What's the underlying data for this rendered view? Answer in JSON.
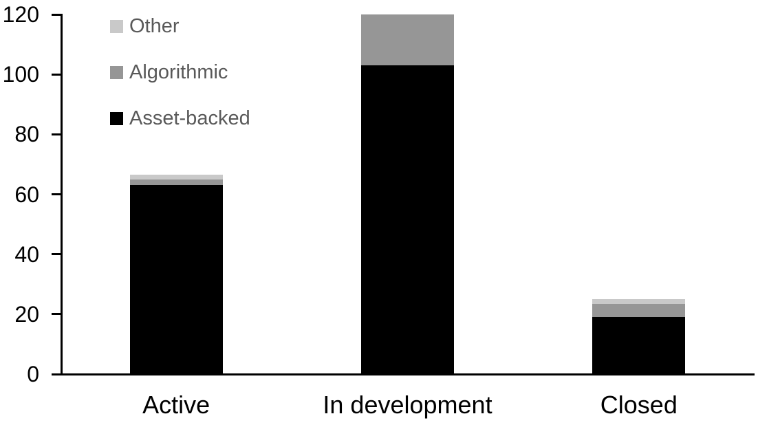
{
  "chart_data": {
    "type": "bar",
    "stacked": true,
    "title": "",
    "xlabel": "",
    "ylabel": "",
    "categories": [
      "Active",
      "In development",
      "Closed"
    ],
    "series": [
      {
        "name": "Asset-backed",
        "color": "#000000",
        "values": [
          63,
          103,
          19
        ]
      },
      {
        "name": "Algorithmic",
        "color": "#969696",
        "values": [
          2,
          17,
          4.5
        ]
      },
      {
        "name": "Other",
        "color": "#C9C9C9",
        "values": [
          1.5,
          0,
          1.5
        ]
      }
    ],
    "totals": [
      66.5,
      120,
      25
    ],
    "ylim": [
      0,
      120
    ],
    "yticks": [
      0,
      20,
      40,
      60,
      80,
      100,
      120
    ],
    "grid": false,
    "legend": {
      "position": "top-left",
      "entries": [
        "Other",
        "Algorithmic",
        "Asset-backed"
      ],
      "text_color": "#595959"
    },
    "axis_color": "#000000",
    "tick_label_color": "#000000",
    "category_label_color": "#000000",
    "background": "#FFFFFF"
  }
}
